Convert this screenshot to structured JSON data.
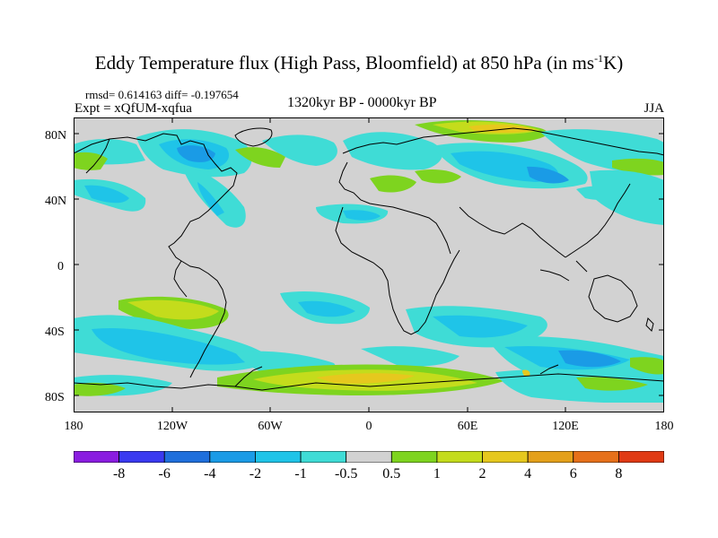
{
  "title_main": "Eddy Temperature flux (High Pass, Bloomfield) at 850 hPa (in ms",
  "title_sup": "-1",
  "title_end": "K)",
  "stats": "rmsd= 0.614163 diff= -0.197654",
  "expt": "Expt = xQfUM-xqfua",
  "period": "1320kyr BP - 0000kyr BP",
  "season": "JJA",
  "lat_labels": [
    "80N",
    "40N",
    "0",
    "40S",
    "80S"
  ],
  "lon_labels": [
    "180",
    "120W",
    "60W",
    "0",
    "60E",
    "120E",
    "180"
  ],
  "colorbar": {
    "labels": [
      "-8",
      "-6",
      "-4",
      "-2",
      "-1",
      "-0.5",
      "0.5",
      "1",
      "2",
      "4",
      "6",
      "8"
    ],
    "colors": [
      "#8a1de0",
      "#3a3af0",
      "#1f6fdc",
      "#1a9be6",
      "#1fc4e8",
      "#3fdcd6",
      "#d2d2d2",
      "#7ed41f",
      "#c4dc1c",
      "#e6c81e",
      "#e4a01a",
      "#e6701a",
      "#e03a14"
    ]
  },
  "colors": {
    "land_neutral": "#d2d2d2",
    "coast": "#000000"
  }
}
